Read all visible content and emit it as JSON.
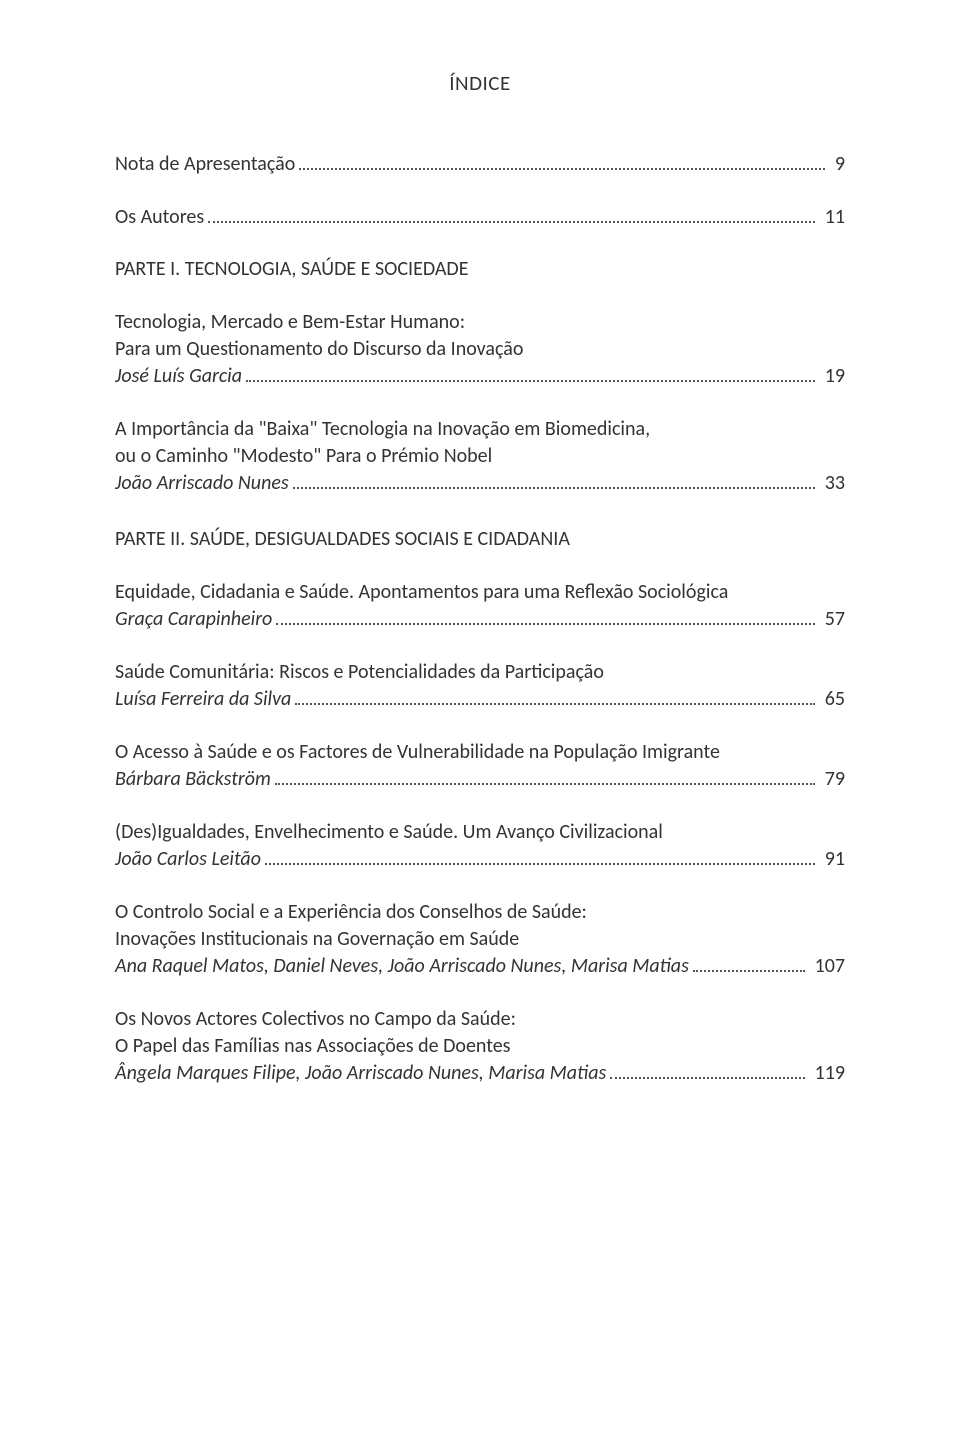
{
  "title": "ÍNDICE",
  "entries": [
    {
      "lines": [
        "Nota de Apresentação"
      ],
      "page": "9",
      "italicLast": false
    },
    {
      "lines": [
        "Os Autores"
      ],
      "page": "11",
      "italicLast": false
    }
  ],
  "part1": {
    "heading": "PARTE I. TECNOLOGIA, SAÚDE E SOCIEDADE",
    "groups": [
      {
        "lines": [
          "Tecnologia, Mercado e Bem-Estar Humano:",
          "Para um Questionamento do Discurso da Inovação",
          "José Luís Garcia"
        ],
        "page": "19",
        "italicLast": true
      },
      {
        "lines": [
          "A Importância da \"Baixa\" Tecnologia na Inovação em Biomedicina,",
          "ou o Caminho \"Modesto\" Para o Prémio Nobel",
          "João Arriscado Nunes"
        ],
        "page": "33",
        "italicLast": true
      }
    ]
  },
  "part2": {
    "heading": "PARTE II. SAÚDE, DESIGUALDADES SOCIAIS E CIDADANIA",
    "groups": [
      {
        "lines": [
          "Equidade, Cidadania e Saúde. Apontamentos para uma Reflexão Sociológica",
          "Graça Carapinheiro"
        ],
        "page": "57",
        "italicLast": true
      },
      {
        "lines": [
          "Saúde Comunitária: Riscos e Potencialidades da Participação",
          "Luísa Ferreira da Silva"
        ],
        "page": "65",
        "italicLast": true
      },
      {
        "lines": [
          "O Acesso à Saúde e os Factores de Vulnerabilidade na População Imigrante",
          "Bárbara Bäckström"
        ],
        "page": "79",
        "italicLast": true
      },
      {
        "lines": [
          "(Des)Igualdades, Envelhecimento e Saúde. Um Avanço Civilizacional",
          "João Carlos Leitão"
        ],
        "page": "91",
        "italicLast": true
      },
      {
        "lines": [
          "O Controlo Social e a Experiência dos Conselhos de Saúde:",
          "Inovações Institucionais na Governação em Saúde",
          "Ana Raquel Matos, Daniel Neves, João Arriscado Nunes, Marisa Matias"
        ],
        "page": "107",
        "italicLast": true
      },
      {
        "lines": [
          "Os Novos Actores Colectivos no Campo da Saúde:",
          "O Papel das Famílias nas Associações de Doentes",
          "Ângela Marques Filipe, João Arriscado Nunes, Marisa Matias"
        ],
        "page": "119",
        "italicLast": true
      }
    ]
  }
}
